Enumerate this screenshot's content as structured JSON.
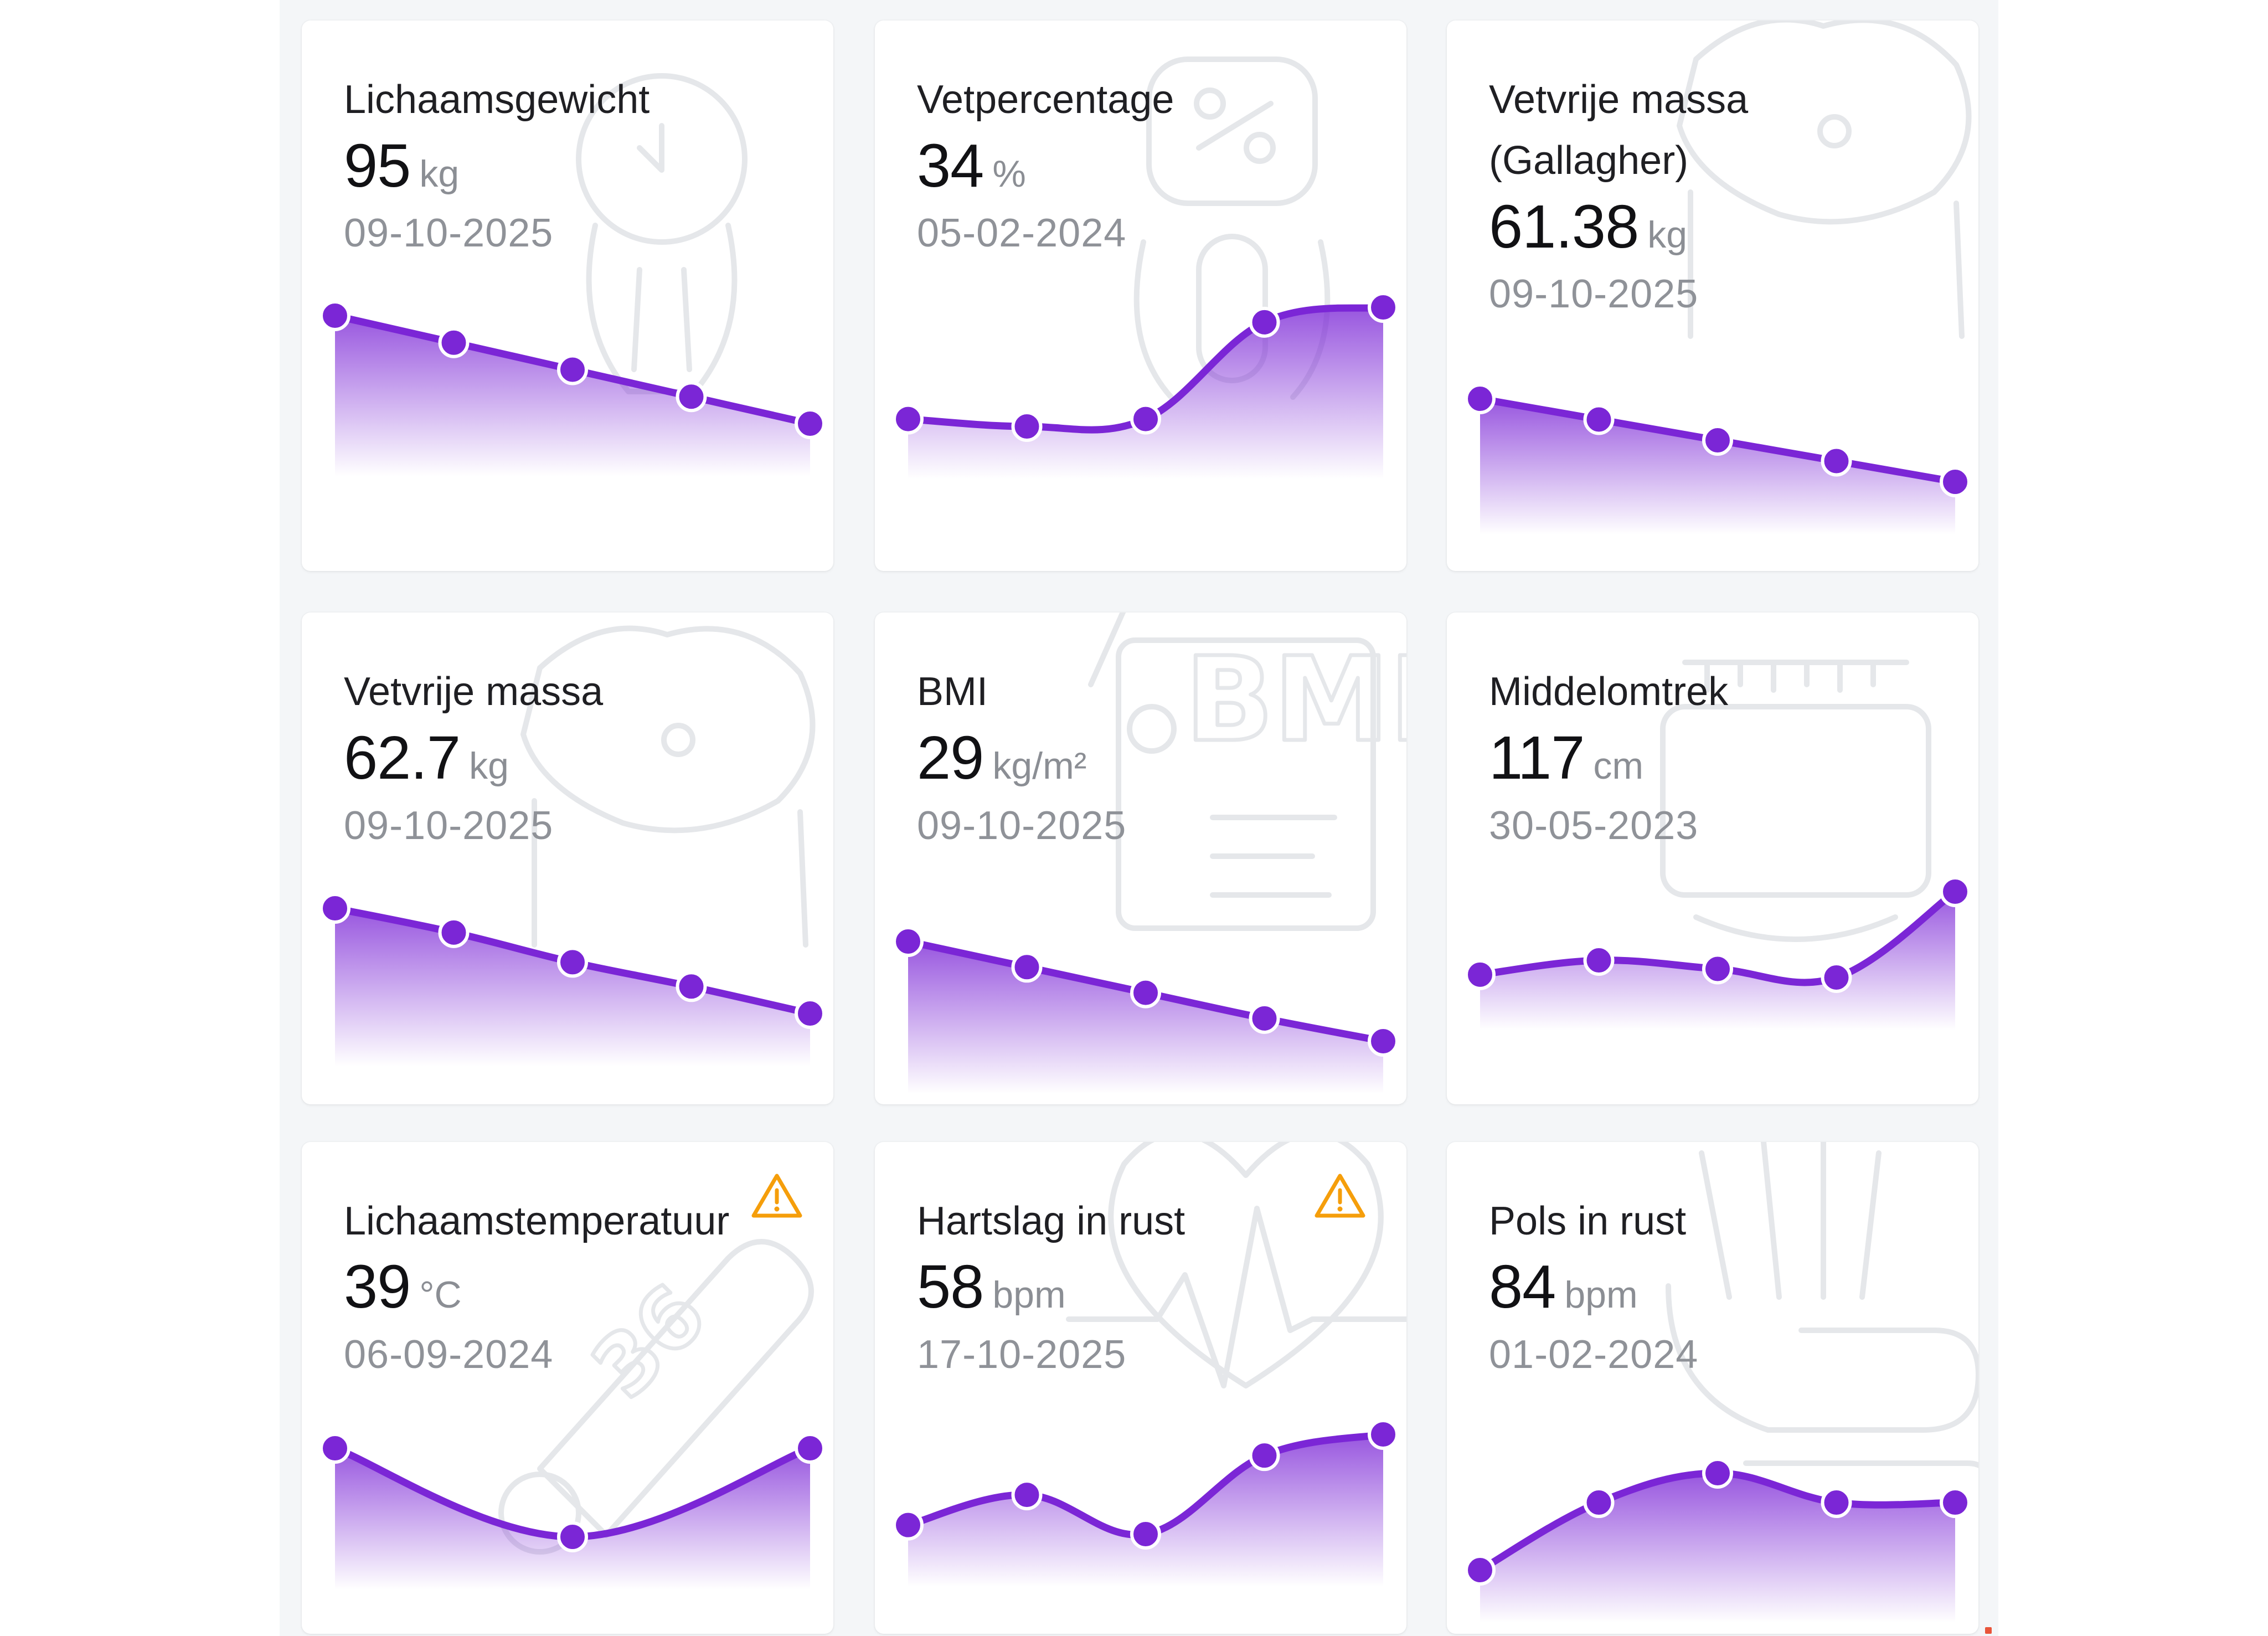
{
  "colors": {
    "accent": "#7b26d6",
    "warning": "#f59e0b",
    "panel_bg": "#f4f6f8"
  },
  "cards": [
    {
      "title": "Lichaamsgewicht",
      "value": "95",
      "unit": "kg",
      "date": "09-10-2025",
      "warning": false,
      "icon": "scale-icon",
      "chart_data": {
        "type": "area",
        "values": [
          5.0,
          4.0,
          3.0,
          2.0,
          1.0
        ]
      }
    },
    {
      "title": "Vetpercentage",
      "value": "34",
      "unit": "%",
      "date": "05-02-2024",
      "warning": false,
      "icon": "percent-scale-icon",
      "chart_data": {
        "type": "area",
        "values": [
          1.3,
          1.0,
          1.3,
          5.2,
          5.8
        ]
      }
    },
    {
      "title": "Vetvrije massa (Gallagher)",
      "value": "61.38",
      "unit": "kg",
      "date": "09-10-2025",
      "warning": false,
      "icon": "body-icon",
      "chart_data": {
        "type": "area",
        "values": [
          5.0,
          4.2,
          3.4,
          2.6,
          1.8
        ]
      }
    },
    {
      "title": "Vetvrije massa",
      "value": "62.7",
      "unit": "kg",
      "date": "09-10-2025",
      "warning": false,
      "icon": "body-icon",
      "chart_data": {
        "type": "area",
        "values": [
          5.0,
          4.1,
          3.0,
          2.1,
          1.1
        ]
      }
    },
    {
      "title": "BMI",
      "value": "29",
      "unit": "kg/m²",
      "date": "09-10-2025",
      "warning": false,
      "icon": "bmi-scale-icon",
      "chart_data": {
        "type": "area",
        "values": [
          5.0,
          4.1,
          3.2,
          2.3,
          1.5
        ]
      }
    },
    {
      "title": "Middelomtrek",
      "value": "117",
      "unit": "cm",
      "date": "30-05-2023",
      "warning": false,
      "icon": "tape-measure-icon",
      "chart_data": {
        "type": "area",
        "values": [
          2.1,
          2.6,
          2.3,
          2.0,
          5.0
        ]
      }
    },
    {
      "title": "Lichaamstemperatuur",
      "value": "39",
      "unit": "°C",
      "date": "06-09-2024",
      "warning": true,
      "icon": "thermometer-icon",
      "chart_data": {
        "type": "area",
        "values": [
          4.0,
          1.0,
          4.0
        ]
      }
    },
    {
      "title": "Hartslag in rust",
      "value": "58",
      "unit": "bpm",
      "date": "17-10-2025",
      "warning": true,
      "icon": "heart-pulse-icon",
      "chart_data": {
        "type": "area",
        "values": [
          2.3,
          3.3,
          2.0,
          4.6,
          5.3
        ]
      }
    },
    {
      "title": "Pols in rust",
      "value": "84",
      "unit": "bpm",
      "date": "01-02-2024",
      "warning": false,
      "icon": "wrist-icon",
      "chart_data": {
        "type": "area",
        "values": [
          1.0,
          3.3,
          4.3,
          3.3,
          3.3
        ]
      }
    }
  ]
}
